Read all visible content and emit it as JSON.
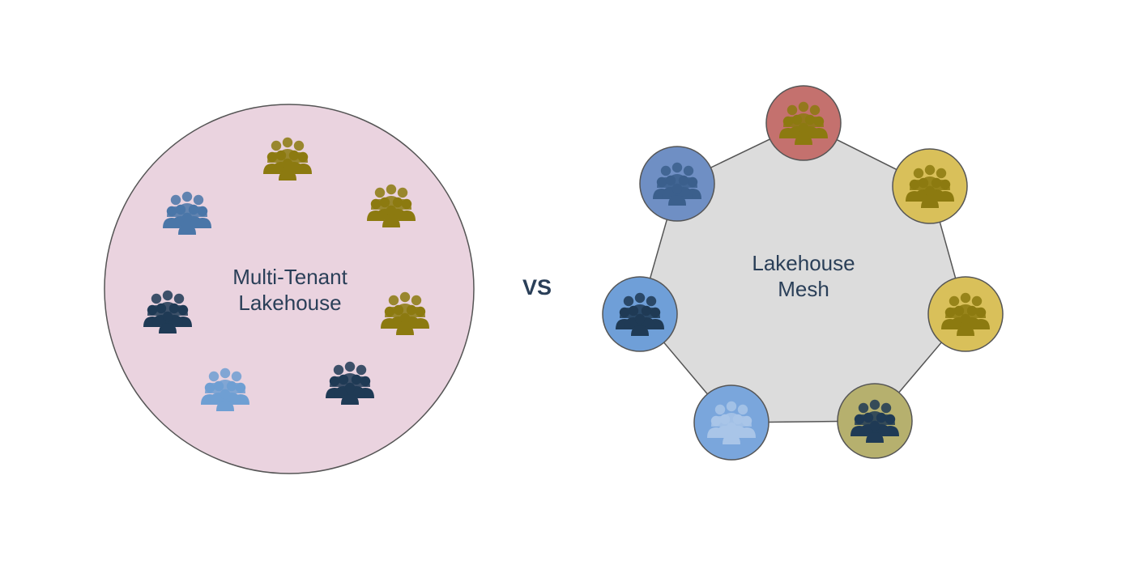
{
  "left": {
    "label_line1": "Multi-Tenant",
    "label_line2": "Lakehouse",
    "fill": "#ead3df",
    "stroke": "#555555",
    "groups": [
      {
        "name": "tenant-group-icon",
        "color": "#8c7a10"
      },
      {
        "name": "tenant-group-icon",
        "color": "#8c7a10"
      },
      {
        "name": "tenant-group-icon",
        "color": "#8c7a10"
      },
      {
        "name": "tenant-group-icon",
        "color": "#1f3a55"
      },
      {
        "name": "tenant-group-icon",
        "color": "#6f9fd3"
      },
      {
        "name": "tenant-group-icon",
        "color": "#1f3a55"
      },
      {
        "name": "tenant-group-icon",
        "color": "#4a76a8"
      }
    ]
  },
  "separator": "VS",
  "right": {
    "label_line1": "Lakehouse",
    "label_line2": "Mesh",
    "fill": "#dcdcdc",
    "stroke": "#555555",
    "nodes": [
      {
        "name": "mesh-node",
        "fill": "#c4716e",
        "icon_color": "#8c7a10"
      },
      {
        "name": "mesh-node",
        "fill": "#d9c05a",
        "icon_color": "#8c7a10"
      },
      {
        "name": "mesh-node",
        "fill": "#d9c05a",
        "icon_color": "#8c7a10"
      },
      {
        "name": "mesh-node",
        "fill": "#b6b06e",
        "icon_color": "#1f3a55"
      },
      {
        "name": "mesh-node",
        "fill": "#7aa6dc",
        "icon_color": "#a9c5e8"
      },
      {
        "name": "mesh-node",
        "fill": "#6f9fd8",
        "icon_color": "#1f3a55"
      },
      {
        "name": "mesh-node",
        "fill": "#6f8fc4",
        "icon_color": "#3b5f8c"
      }
    ]
  }
}
